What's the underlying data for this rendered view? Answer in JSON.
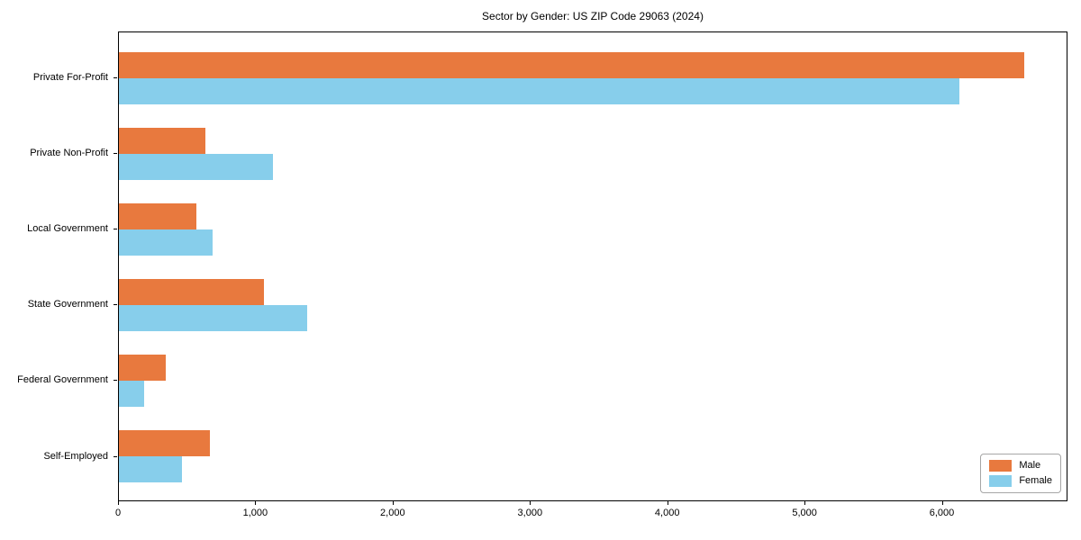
{
  "chart_data": {
    "type": "bar",
    "orientation": "horizontal",
    "title": "Sector by Gender: US ZIP Code 29063 (2024)",
    "categories": [
      "Private For-Profit",
      "Private Non-Profit",
      "Local Government",
      "State Government",
      "Federal Government",
      "Self-Employed"
    ],
    "series": [
      {
        "name": "Male",
        "color": "#e8793e",
        "values": [
          6590,
          630,
          565,
          1055,
          340,
          665
        ]
      },
      {
        "name": "Female",
        "color": "#87ceeb",
        "values": [
          6120,
          1120,
          685,
          1370,
          185,
          460
        ]
      }
    ],
    "xlabel": "",
    "ylabel": "",
    "xlim": [
      0,
      6915
    ],
    "x_tick_values": [
      0,
      1000,
      2000,
      3000,
      4000,
      5000,
      6000
    ],
    "x_tick_labels": [
      "0",
      "1,000",
      "2,000",
      "3,000",
      "4,000",
      "5,000",
      "6,000"
    ],
    "grid": false,
    "legend_position": "lower right",
    "axis_color": "#000000",
    "background_color": "#ffffff"
  }
}
